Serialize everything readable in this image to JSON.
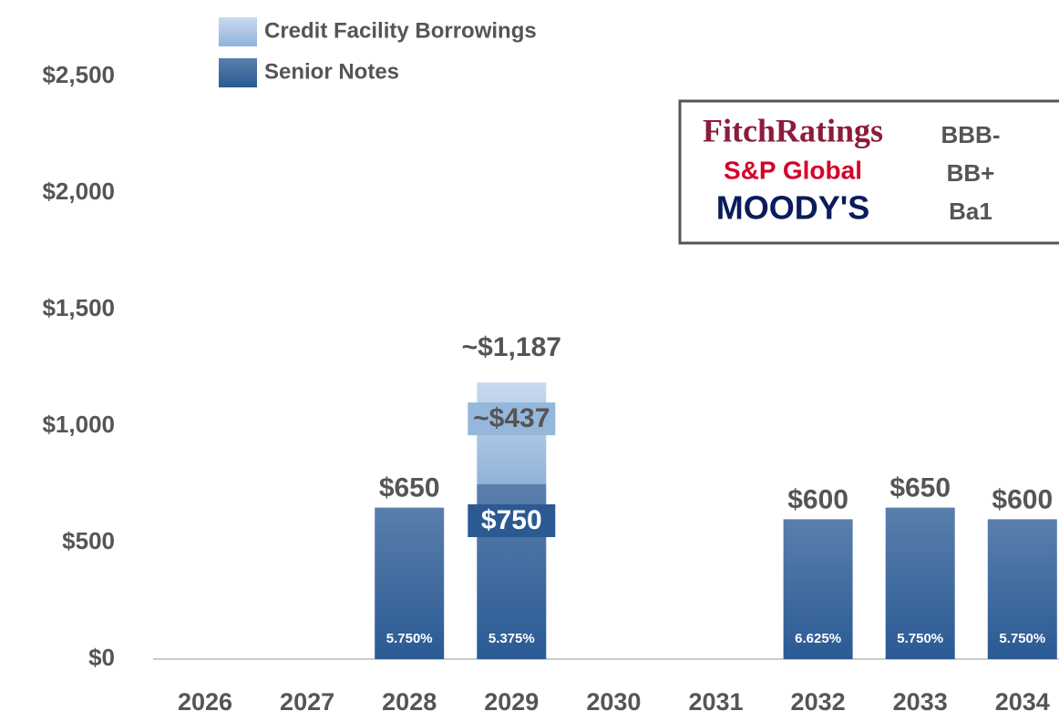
{
  "chart_data": {
    "type": "stacked_bar",
    "categories": [
      "2026",
      "2027",
      "2028",
      "2029",
      "2030",
      "2031",
      "2032",
      "2033",
      "2034"
    ],
    "series": [
      {
        "name": "Senior Notes",
        "color": "#2e5c94",
        "values": [
          0,
          0,
          650,
          750,
          0,
          0,
          600,
          650,
          600
        ],
        "value_labels": [
          null,
          null,
          "$650",
          "$750",
          null,
          null,
          "$600",
          "$650",
          "$600"
        ],
        "rate_labels": [
          null,
          null,
          "5.750%",
          "5.375%",
          null,
          null,
          "6.625%",
          "5.750%",
          "5.750%"
        ]
      },
      {
        "name": "Credit Facility Borrowings",
        "color": "#9dbde0",
        "values": [
          0,
          0,
          0,
          437,
          0,
          0,
          0,
          0,
          0
        ],
        "value_labels": [
          null,
          null,
          null,
          "~$437",
          null,
          null,
          null,
          null,
          null
        ]
      }
    ],
    "total_labels": [
      null,
      null,
      null,
      "~$1,187",
      null,
      null,
      null,
      null,
      null
    ],
    "ylim": [
      0,
      2500
    ],
    "yticks": [
      {
        "value": 0,
        "label": "$0"
      },
      {
        "value": 500,
        "label": "$500"
      },
      {
        "value": 1000,
        "label": "$1,000"
      },
      {
        "value": 1500,
        "label": "$1,500"
      },
      {
        "value": 2000,
        "label": "$2,000"
      },
      {
        "value": 2500,
        "label": "$2,500"
      }
    ],
    "grid": false,
    "ratings": [
      {
        "agency": "FitchRatings",
        "rating": "BBB-",
        "color": "#8b1c3c"
      },
      {
        "agency": "S&P Global",
        "rating": "BB+",
        "color": "#d6002a"
      },
      {
        "agency": "MOODY'S",
        "rating": "Ba1",
        "color": "#0b1c5c"
      }
    ]
  }
}
